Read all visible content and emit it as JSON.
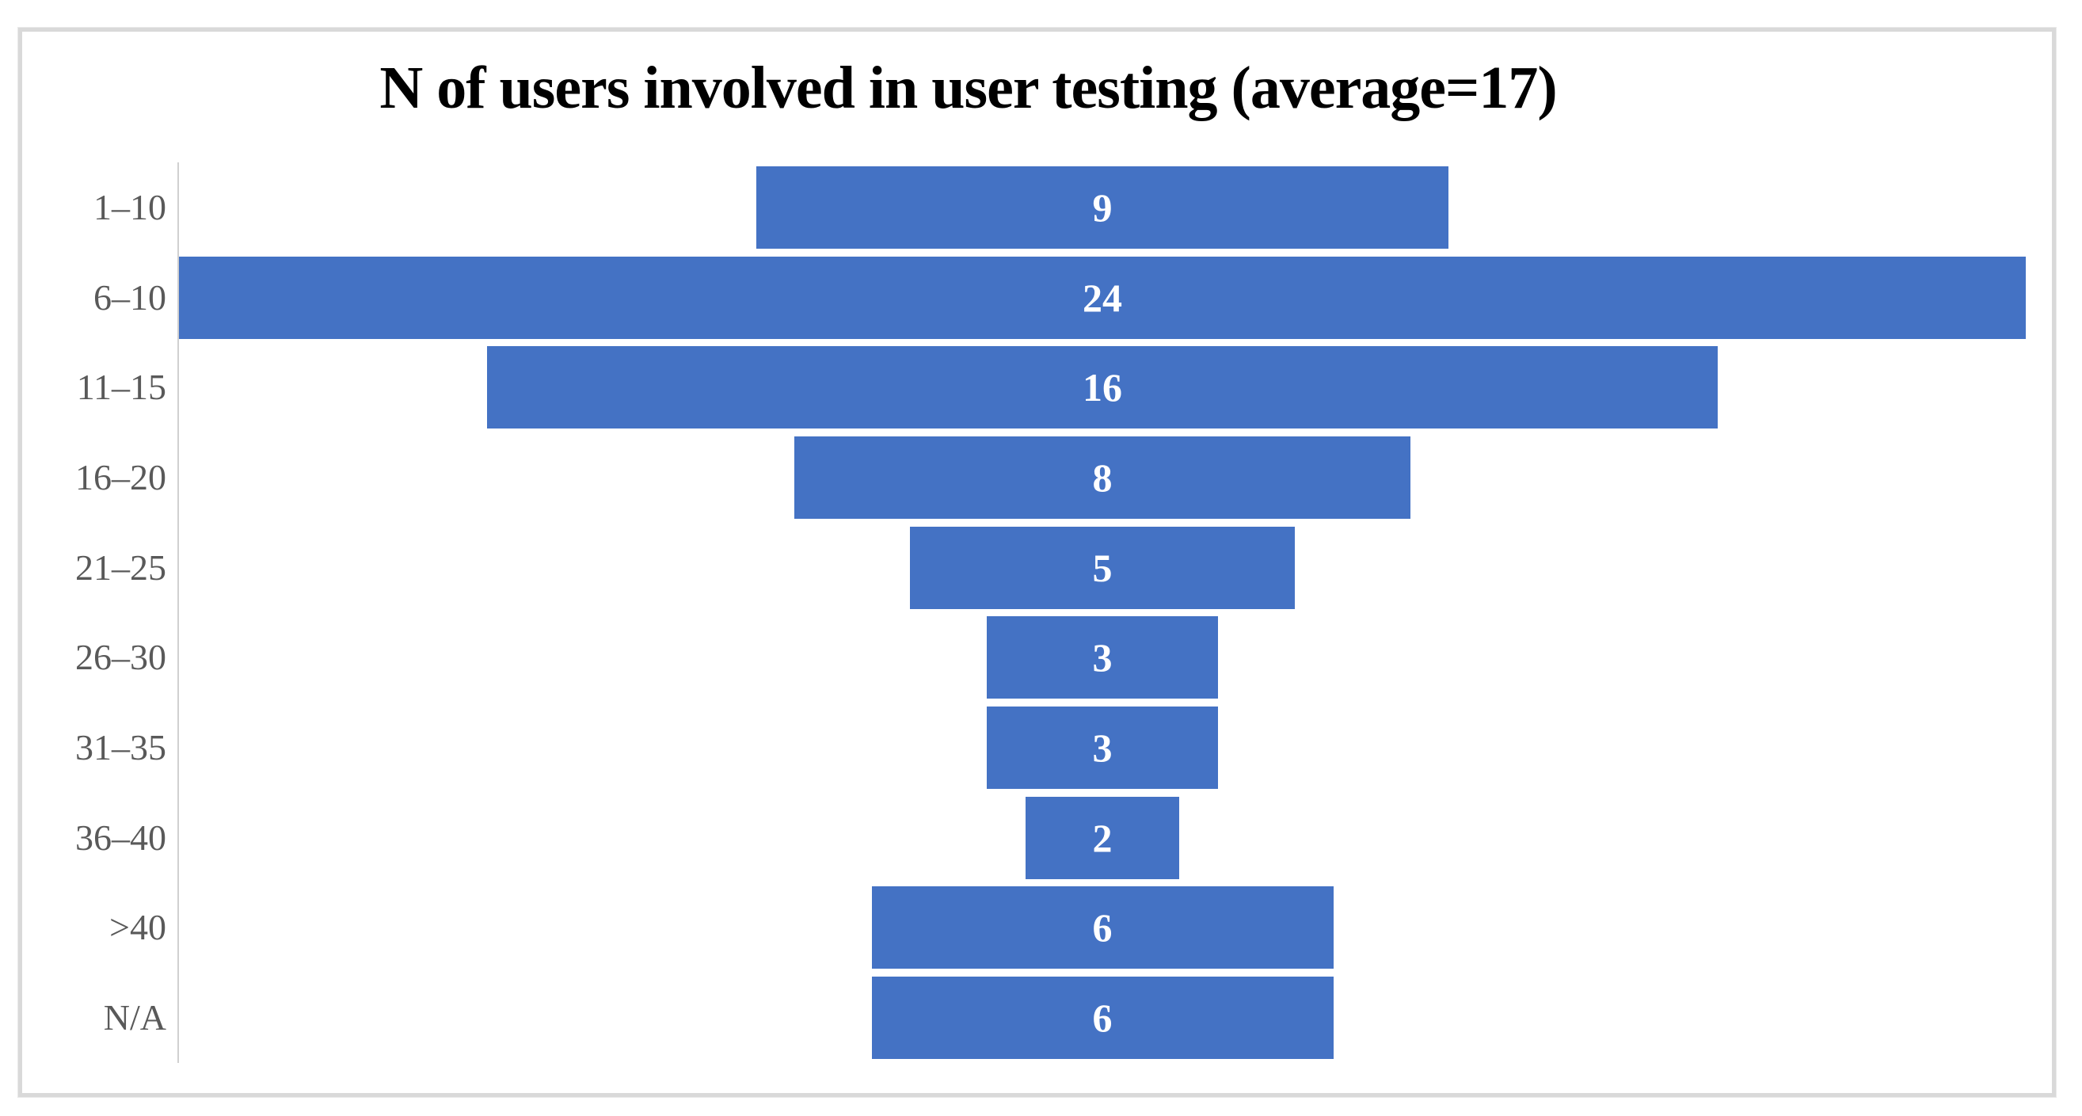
{
  "chart_data": {
    "type": "bar",
    "subtype": "horizontal-centered-funnel",
    "title": "N of users involved in user testing (average=17)",
    "categories": [
      "1–10",
      "6–10",
      "11–15",
      "16–20",
      "21–25",
      "26–30",
      "31–35",
      "36–40",
      ">40",
      "N/A"
    ],
    "values": [
      9,
      24,
      16,
      8,
      5,
      3,
      3,
      2,
      6,
      6
    ],
    "xlim": [
      0,
      24
    ],
    "grid": false,
    "legend": false,
    "data_labels": "centered-inside-bars",
    "colors": {
      "bar": "#4472C4",
      "value_label": "#FFFFFF",
      "category_label": "#595959",
      "axis_line": "#D0D0D0",
      "frame_border": "#D9D9D9",
      "background": "#FFFFFF",
      "title": "#000000"
    }
  }
}
